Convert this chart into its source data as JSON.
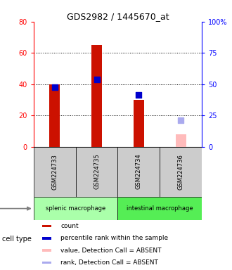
{
  "title": "GDS2982 / 1445670_at",
  "samples": [
    "GSM224733",
    "GSM224735",
    "GSM224734",
    "GSM224736"
  ],
  "count_values": [
    40,
    65,
    30,
    null
  ],
  "rank_values": [
    38,
    43,
    33,
    null
  ],
  "count_absent": [
    null,
    null,
    null,
    8
  ],
  "rank_absent": [
    null,
    null,
    null,
    17
  ],
  "ylim_left": [
    0,
    80
  ],
  "ylim_right": [
    0,
    100
  ],
  "left_ticks": [
    0,
    20,
    40,
    60,
    80
  ],
  "right_ticks": [
    0,
    25,
    50,
    75,
    100
  ],
  "left_tick_labels": [
    "0",
    "20",
    "40",
    "60",
    "80"
  ],
  "right_tick_labels": [
    "0",
    "25",
    "50",
    "75",
    "100%"
  ],
  "bar_color_present": "#cc1100",
  "bar_color_absent": "#ffbbbb",
  "rank_color_present": "#0000cc",
  "rank_color_absent": "#aaaaee",
  "splenic_color": "#aaffaa",
  "intestinal_color": "#55ee55",
  "header_bg": "#cccccc",
  "legend_items": [
    {
      "color": "#cc1100",
      "label": "count"
    },
    {
      "color": "#0000cc",
      "label": "percentile rank within the sample"
    },
    {
      "color": "#ffbbbb",
      "label": "value, Detection Call = ABSENT"
    },
    {
      "color": "#aaaaee",
      "label": "rank, Detection Call = ABSENT"
    }
  ],
  "bar_width": 0.25,
  "rank_marker_size": 30,
  "cell_type_label": "cell type"
}
